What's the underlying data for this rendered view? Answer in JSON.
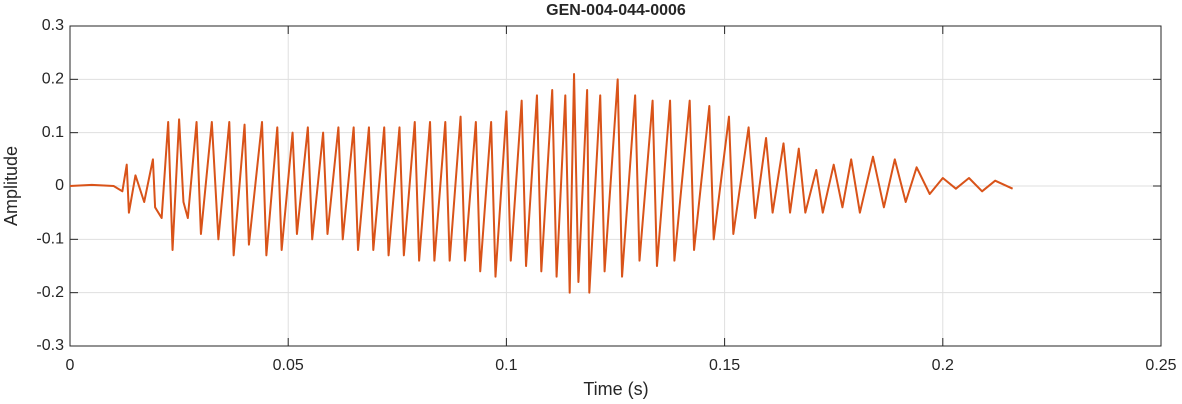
{
  "chart_data": {
    "type": "line",
    "title": "GEN-004-044-0006",
    "x_label": "Time (s)",
    "y_label": "Amplitude",
    "xlim": [
      0,
      0.25
    ],
    "xticks": [
      0,
      0.05,
      0.1,
      0.15,
      0.2,
      0.25
    ],
    "ylim": [
      -0.3,
      0.3
    ],
    "yticks": [
      -0.3,
      -0.2,
      -0.1,
      0,
      0.1,
      0.2,
      0.3
    ],
    "grid": true,
    "series": [
      {
        "color": "#d95319",
        "x": [
          0,
          0.005,
          0.01,
          0.012,
          0.013,
          0.0135,
          0.015,
          0.017,
          0.019,
          0.0195,
          0.021,
          0.0225,
          0.0235,
          0.025,
          0.026,
          0.027,
          0.029,
          0.03,
          0.0325,
          0.034,
          0.0365,
          0.0375,
          0.04,
          0.041,
          0.044,
          0.045,
          0.0475,
          0.0485,
          0.051,
          0.052,
          0.0545,
          0.0555,
          0.058,
          0.059,
          0.0615,
          0.0625,
          0.065,
          0.066,
          0.0685,
          0.0695,
          0.072,
          0.073,
          0.0755,
          0.0765,
          0.079,
          0.08,
          0.0825,
          0.0835,
          0.086,
          0.087,
          0.0895,
          0.0905,
          0.093,
          0.094,
          0.0965,
          0.0975,
          0.1,
          0.101,
          0.1035,
          0.1045,
          0.107,
          0.108,
          0.1105,
          0.1115,
          0.1135,
          0.1145,
          0.1155,
          0.1165,
          0.1185,
          0.119,
          0.1215,
          0.1225,
          0.1255,
          0.1265,
          0.1295,
          0.1305,
          0.1335,
          0.1345,
          0.1375,
          0.1385,
          0.142,
          0.143,
          0.1465,
          0.1475,
          0.151,
          0.152,
          0.1555,
          0.157,
          0.1595,
          0.161,
          0.1635,
          0.165,
          0.167,
          0.1685,
          0.171,
          0.1725,
          0.175,
          0.177,
          0.179,
          0.181,
          0.184,
          0.1865,
          0.189,
          0.1915,
          0.194,
          0.197,
          0.2,
          0.203,
          0.206,
          0.209,
          0.212,
          0.216
        ],
        "values": [
          0,
          0.002,
          0,
          -0.01,
          0.04,
          -0.05,
          0.02,
          -0.03,
          0.05,
          -0.04,
          -0.06,
          0.12,
          -0.12,
          0.125,
          -0.03,
          -0.06,
          0.12,
          -0.09,
          0.12,
          -0.1,
          0.12,
          -0.13,
          0.115,
          -0.11,
          0.12,
          -0.13,
          0.11,
          -0.12,
          0.1,
          -0.09,
          0.11,
          -0.1,
          0.1,
          -0.09,
          0.11,
          -0.1,
          0.11,
          -0.12,
          0.11,
          -0.12,
          0.11,
          -0.13,
          0.11,
          -0.13,
          0.12,
          -0.14,
          0.12,
          -0.14,
          0.12,
          -0.14,
          0.13,
          -0.14,
          0.12,
          -0.16,
          0.12,
          -0.17,
          0.14,
          -0.14,
          0.16,
          -0.15,
          0.17,
          -0.16,
          0.18,
          -0.17,
          0.17,
          -0.2,
          0.21,
          -0.18,
          0.18,
          -0.2,
          0.17,
          -0.16,
          0.2,
          -0.17,
          0.17,
          -0.14,
          0.16,
          -0.15,
          0.16,
          -0.14,
          0.16,
          -0.12,
          0.15,
          -0.1,
          0.13,
          -0.09,
          0.11,
          -0.06,
          0.09,
          -0.05,
          0.08,
          -0.05,
          0.07,
          -0.05,
          0.03,
          -0.05,
          0.04,
          -0.04,
          0.05,
          -0.05,
          0.055,
          -0.04,
          0.05,
          -0.03,
          0.035,
          -0.015,
          0.015,
          -0.005,
          0.015,
          -0.01,
          0.01,
          -0.005
        ]
      }
    ]
  }
}
